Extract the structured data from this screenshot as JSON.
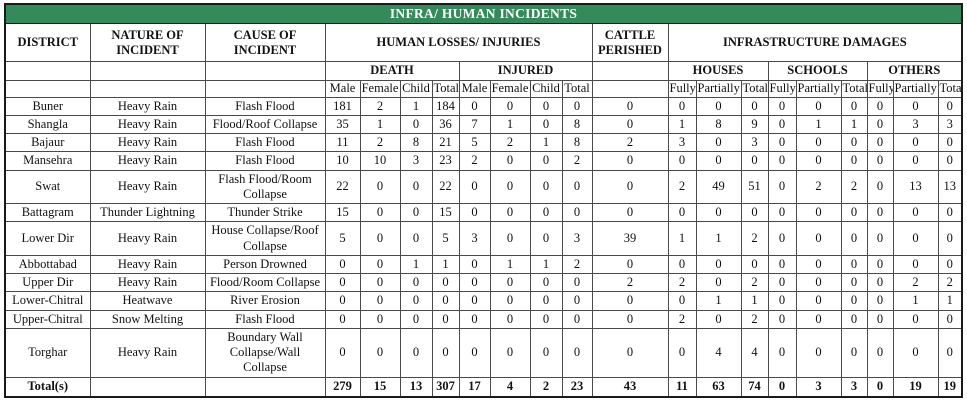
{
  "title": "INFRA/ HUMAN INCIDENTS",
  "colors": {
    "banner_bg": "#348A5A",
    "banner_text": "#FFFFFF",
    "grid_line": "#4a4a4a"
  },
  "headers": {
    "district": "DISTRICT",
    "nature_of_incident": "NATURE OF INCIDENT",
    "cause_of_incident": "CAUSE OF INCIDENT",
    "human_losses_injuries": "HUMAN LOSSES/ INJURIES",
    "cattle_perished": "CATTLE PERISHED",
    "infrastructure_damages": "INFRASTRUCTURE DAMAGES",
    "death": "DEATH",
    "injured": "INJURED",
    "houses": "HOUSES",
    "schools": "SCHOOLS",
    "others": "OTHERS",
    "male": "Male",
    "female": "Female",
    "child": "Child",
    "total": "Total",
    "fully": "Fully",
    "partially": "Partially"
  },
  "value_columns": [
    "death_male",
    "death_female",
    "death_child",
    "death_total",
    "injured_male",
    "injured_female",
    "injured_child",
    "injured_total",
    "cattle_perished",
    "houses_fully",
    "houses_partially",
    "houses_total",
    "schools_fully",
    "schools_partially",
    "schools_total",
    "others_fully",
    "others_partially",
    "others_total"
  ],
  "rows": [
    {
      "district": "Buner",
      "nature": "Heavy Rain",
      "cause": "Flash Flood",
      "values": [
        181,
        2,
        1,
        184,
        0,
        0,
        0,
        0,
        0,
        0,
        0,
        0,
        0,
        0,
        0,
        0,
        0,
        0
      ]
    },
    {
      "district": "Shangla",
      "nature": "Heavy Rain",
      "cause": "Flood/Roof Collapse",
      "values": [
        35,
        1,
        0,
        36,
        7,
        1,
        0,
        8,
        0,
        1,
        8,
        9,
        0,
        1,
        1,
        0,
        3,
        3
      ]
    },
    {
      "district": "Bajaur",
      "nature": "Heavy Rain",
      "cause": "Flash Flood",
      "values": [
        11,
        2,
        8,
        21,
        5,
        2,
        1,
        8,
        2,
        3,
        0,
        3,
        0,
        0,
        0,
        0,
        0,
        0
      ]
    },
    {
      "district": "Mansehra",
      "nature": "Heavy Rain",
      "cause": "Flash Flood",
      "values": [
        10,
        10,
        3,
        23,
        2,
        0,
        0,
        2,
        0,
        0,
        0,
        0,
        0,
        0,
        0,
        0,
        0,
        0
      ]
    },
    {
      "district": "Swat",
      "nature": "Heavy Rain",
      "cause": "Flash Flood/Room Collapse",
      "values": [
        22,
        0,
        0,
        22,
        0,
        0,
        0,
        0,
        0,
        2,
        49,
        51,
        0,
        2,
        2,
        0,
        13,
        13
      ]
    },
    {
      "district": "Battagram",
      "nature": "Thunder Lightning",
      "cause": "Thunder Strike",
      "values": [
        15,
        0,
        0,
        15,
        0,
        0,
        0,
        0,
        0,
        0,
        0,
        0,
        0,
        0,
        0,
        0,
        0,
        0
      ]
    },
    {
      "district": "Lower Dir",
      "nature": "Heavy Rain",
      "cause": "House Collapse/Roof Collapse",
      "values": [
        5,
        0,
        0,
        5,
        3,
        0,
        0,
        3,
        39,
        1,
        1,
        2,
        0,
        0,
        0,
        0,
        0,
        0
      ]
    },
    {
      "district": "Abbottabad",
      "nature": "Heavy Rain",
      "cause": "Person Drowned",
      "values": [
        0,
        0,
        1,
        1,
        0,
        1,
        1,
        2,
        0,
        0,
        0,
        0,
        0,
        0,
        0,
        0,
        0,
        0
      ]
    },
    {
      "district": "Upper Dir",
      "nature": "Heavy Rain",
      "cause": "Flood/Room Collapse",
      "values": [
        0,
        0,
        0,
        0,
        0,
        0,
        0,
        0,
        2,
        2,
        0,
        2,
        0,
        0,
        0,
        0,
        2,
        2
      ]
    },
    {
      "district": "Lower-Chitral",
      "nature": "Heatwave",
      "cause": "River Erosion",
      "values": [
        0,
        0,
        0,
        0,
        0,
        0,
        0,
        0,
        0,
        0,
        1,
        1,
        0,
        0,
        0,
        0,
        1,
        1
      ]
    },
    {
      "district": "Upper-Chitral",
      "nature": "Snow Melting",
      "cause": "Flash Flood",
      "values": [
        0,
        0,
        0,
        0,
        0,
        0,
        0,
        0,
        0,
        2,
        0,
        2,
        0,
        0,
        0,
        0,
        0,
        0
      ]
    },
    {
      "district": "Torghar",
      "nature": "Heavy Rain",
      "cause": "Boundary Wall Collapse/Wall Collapse",
      "values": [
        0,
        0,
        0,
        0,
        0,
        0,
        0,
        0,
        0,
        0,
        4,
        4,
        0,
        0,
        0,
        0,
        0,
        0
      ]
    }
  ],
  "totals": {
    "label": "Total(s)",
    "values": [
      279,
      15,
      13,
      307,
      17,
      4,
      2,
      23,
      43,
      11,
      63,
      74,
      0,
      3,
      3,
      0,
      19,
      19
    ]
  }
}
